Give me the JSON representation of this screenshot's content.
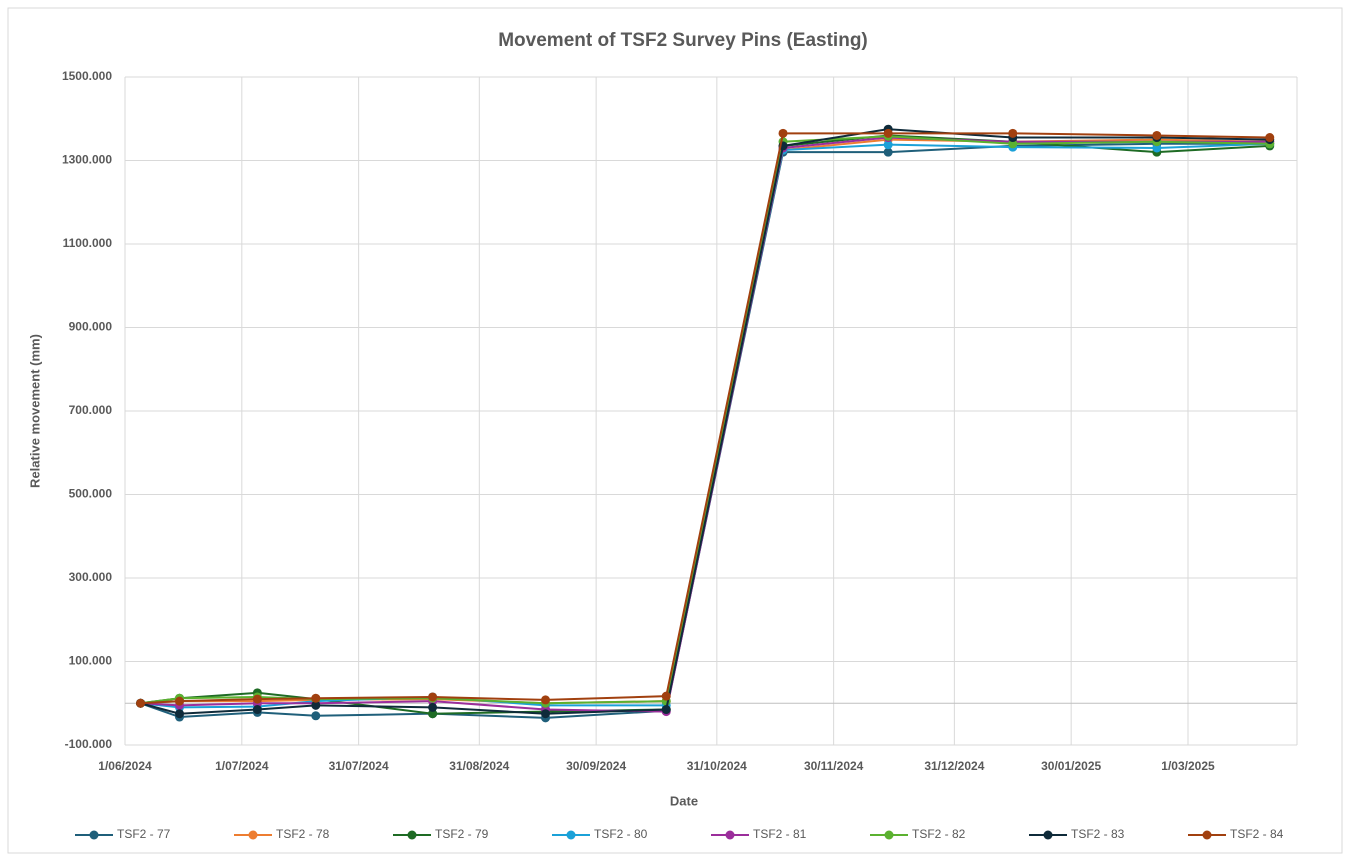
{
  "chart_data": {
    "type": "line",
    "title": "Movement of TSF2 Survey Pins (Easting)",
    "x_label": "Date",
    "y_label": "Relative movement (mm)",
    "x": [
      "2024-06-05",
      "2024-06-15",
      "2024-07-05",
      "2024-07-20",
      "2024-08-19",
      "2024-09-17",
      "2024-10-18",
      "2024-11-17",
      "2024-12-14",
      "2025-01-15",
      "2025-02-21",
      "2025-03-22"
    ],
    "xlim": [
      "2024-06-01",
      "2025-03-29"
    ],
    "xticks": [
      {
        "value": "2024-06-01",
        "label": "1/06/2024"
      },
      {
        "value": "2024-07-01",
        "label": "1/07/2024"
      },
      {
        "value": "2024-07-31",
        "label": "31/07/2024"
      },
      {
        "value": "2024-08-31",
        "label": "31/08/2024"
      },
      {
        "value": "2024-09-30",
        "label": "30/09/2024"
      },
      {
        "value": "2024-10-31",
        "label": "31/10/2024"
      },
      {
        "value": "2024-11-30",
        "label": "30/11/2024"
      },
      {
        "value": "2024-12-31",
        "label": "31/12/2024"
      },
      {
        "value": "2025-01-30",
        "label": "30/01/2025"
      },
      {
        "value": "2025-03-01",
        "label": "1/03/2025"
      }
    ],
    "ylim": [
      -100,
      1500
    ],
    "yticks": [
      {
        "value": -100,
        "label": "-100.000"
      },
      {
        "value": 100,
        "label": "100.000"
      },
      {
        "value": 300,
        "label": "300.000"
      },
      {
        "value": 500,
        "label": "500.000"
      },
      {
        "value": 700,
        "label": "700.000"
      },
      {
        "value": 900,
        "label": "900.000"
      },
      {
        "value": 1100,
        "label": "1100.000"
      },
      {
        "value": 1300,
        "label": "1300.000"
      },
      {
        "value": 1500,
        "label": "1500.000"
      }
    ],
    "grid": true,
    "legend": "bottom",
    "series": [
      {
        "name": "TSF2 - 77",
        "color": "#1f5f7a",
        "values": [
          0,
          -33,
          -22,
          -30,
          -25,
          -35,
          -18,
          1320,
          1320,
          1335,
          1340,
          1340
        ]
      },
      {
        "name": "TSF2 - 78",
        "color": "#ed7d31",
        "values": [
          0,
          5,
          5,
          8,
          10,
          0,
          5,
          1325,
          1350,
          1345,
          1350,
          1345
        ]
      },
      {
        "name": "TSF2 - 79",
        "color": "#1e6b24",
        "values": [
          0,
          12,
          25,
          10,
          -25,
          -20,
          -15,
          1335,
          1360,
          1345,
          1320,
          1335
        ]
      },
      {
        "name": "TSF2 - 80",
        "color": "#1ba1d8",
        "values": [
          0,
          -10,
          -8,
          5,
          15,
          -5,
          -5,
          1325,
          1338,
          1332,
          1330,
          1340
        ]
      },
      {
        "name": "TSF2 - 81",
        "color": "#9b2e9b",
        "values": [
          0,
          -5,
          0,
          0,
          5,
          -15,
          -20,
          1330,
          1355,
          1345,
          1345,
          1345
        ]
      },
      {
        "name": "TSF2 - 82",
        "color": "#5bb130",
        "values": [
          0,
          12,
          15,
          10,
          12,
          0,
          5,
          1345,
          1358,
          1340,
          1345,
          1340
        ]
      },
      {
        "name": "TSF2 - 83",
        "color": "#0f2b3a",
        "values": [
          0,
          -25,
          -15,
          -5,
          -10,
          -25,
          -15,
          1335,
          1375,
          1355,
          1355,
          1350
        ]
      },
      {
        "name": "TSF2 - 84",
        "color": "#a1400f",
        "values": [
          0,
          5,
          10,
          12,
          15,
          8,
          17,
          1365,
          1365,
          1365,
          1360,
          1355
        ]
      }
    ]
  }
}
